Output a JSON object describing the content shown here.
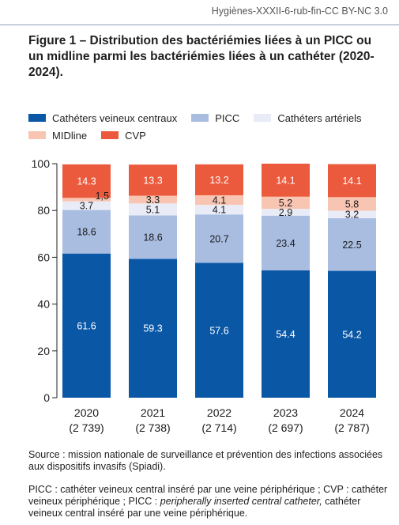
{
  "credit": "Hygiènes-XXXII-6-rub-fin-CC BY-NC 3.0",
  "title": "Figure 1 – Distribution des bactériémies liées à un PICC ou un midline parmi les bactériémies liées à un cathéter (2020-2024).",
  "legend": [
    {
      "label": "Cathéters veineux centraux",
      "color": "#0a57a6"
    },
    {
      "label": "PICC",
      "color": "#a9bde1"
    },
    {
      "label": "Cathéters artériels",
      "color": "#e9ecf7"
    },
    {
      "label": "MIDline",
      "color": "#f9c5b3"
    },
    {
      "label": "CVP",
      "color": "#ec5a3d"
    }
  ],
  "chart_data": {
    "type": "bar",
    "stacked": true,
    "categories": [
      "2020",
      "2021",
      "2022",
      "2023",
      "2024"
    ],
    "category_sublabels": [
      "(2 739)",
      "(2 738)",
      "(2 714)",
      "(2 697)",
      "(2 787)"
    ],
    "series": [
      {
        "name": "Cathéters veineux centraux",
        "values": [
          61.6,
          59.3,
          57.6,
          54.4,
          54.2
        ],
        "labels": [
          "61.6",
          "59.3",
          "57.6",
          "54.4",
          "54.2"
        ],
        "color": "#0a57a6",
        "label_color": "#ffffff"
      },
      {
        "name": "PICC",
        "values": [
          18.6,
          18.6,
          20.7,
          23.4,
          22.5
        ],
        "labels": [
          "18.6",
          "18.6",
          "20.7",
          "23.4",
          "22.5"
        ],
        "color": "#a9bde1",
        "label_color": "#1a1a1a"
      },
      {
        "name": "Cathéters artériels",
        "values": [
          3.7,
          5.1,
          4.1,
          2.9,
          3.2
        ],
        "labels": [
          "3.7",
          "5.1",
          "4.1",
          "2.9",
          "3.2"
        ],
        "color": "#e9ecf7",
        "label_color": "#1a1a1a"
      },
      {
        "name": "MIDline",
        "values": [
          1.5,
          3.3,
          4.1,
          5.2,
          5.8
        ],
        "labels": [
          "1,5",
          "3.3",
          "4.1",
          "5.2",
          "5.8"
        ],
        "color": "#f9c5b3",
        "label_color": "#1a1a1a"
      },
      {
        "name": "CVP",
        "values": [
          14.3,
          13.3,
          13.2,
          14.1,
          14.1
        ],
        "labels": [
          "14.3",
          "13.3",
          "13.2",
          "14.1",
          "14.1"
        ],
        "color": "#ec5a3d",
        "label_color": "#ffffff"
      }
    ],
    "yticks": [
      0,
      20,
      40,
      60,
      80,
      100
    ],
    "ylim": [
      0,
      100
    ],
    "grid": false,
    "legend_position": "top-left"
  },
  "source": "Source : mission nationale de surveillance et prévention des infections associées aux dispositifs invasifs (Spiadi).",
  "notes": {
    "part1": "PICC : cathéter veineux central inséré par une veine périphérique ; CVP : cathéter veineux périphérique ; PICC : ",
    "italic": "peripherally inserted central catheter,",
    "part2": " cathéter veineux central inséré par une veine périphérique."
  }
}
